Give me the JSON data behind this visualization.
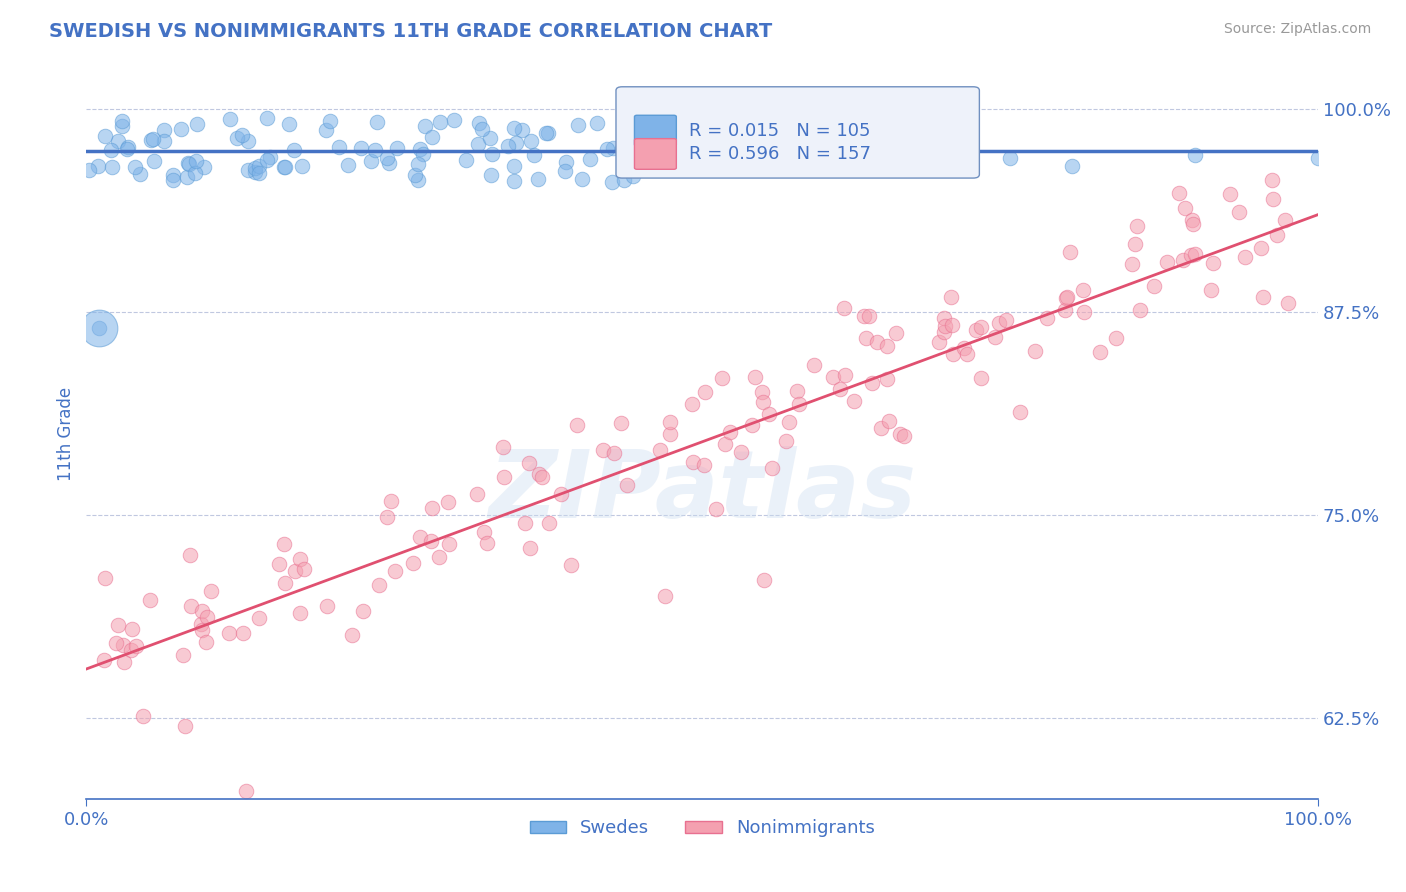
{
  "title": "SWEDISH VS NONIMMIGRANTS 11TH GRADE CORRELATION CHART",
  "source_text": "Source: ZipAtlas.com",
  "ylabel": "11th Grade",
  "x_min": 0.0,
  "x_max": 1.0,
  "y_min": 0.575,
  "y_max": 1.025,
  "yticks": [
    0.625,
    0.75,
    0.875,
    1.0
  ],
  "ytick_labels": [
    "62.5%",
    "75.0%",
    "87.5%",
    "100.0%"
  ],
  "title_color": "#4472c4",
  "tick_color": "#4472c4",
  "background_color": "#ffffff",
  "blue_color": "#7fb3e8",
  "pink_color": "#f4a0b0",
  "blue_edge": "#5b9bd5",
  "pink_edge": "#e87090",
  "blue_line_color": "#4472c4",
  "pink_line_color": "#e05070",
  "grid_color": "#c0c8e0",
  "legend_box_color": "#eef2fa",
  "legend_border_color": "#7090c0",
  "R_blue": 0.015,
  "N_blue": 105,
  "R_pink": 0.596,
  "N_pink": 157,
  "watermark": "ZIPatlas",
  "legend_label_blue": "Swedes",
  "legend_label_pink": "Nonimmigrants",
  "blue_trend_y": [
    0.974,
    0.974
  ],
  "pink_trend_y": [
    0.655,
    0.935
  ],
  "marker_size": 110,
  "marker_alpha": 0.55
}
